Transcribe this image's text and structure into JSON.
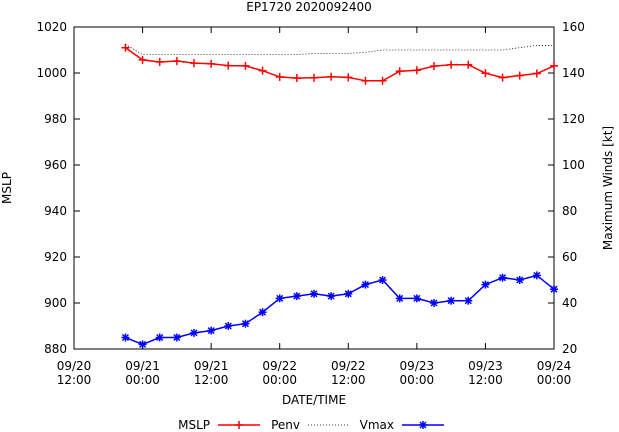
{
  "chart_data": {
    "type": "line",
    "title": "EP1720 2020092400",
    "xlabel": "DATE/TIME",
    "ylabel_left": "MSLP",
    "ylabel_right": "Maximum Winds [kt]",
    "x_ticks": [
      {
        "hour": 0,
        "line1": "09/20",
        "line2": "12:00"
      },
      {
        "hour": 12,
        "line1": "09/21",
        "line2": "00:00"
      },
      {
        "hour": 24,
        "line1": "09/21",
        "line2": "12:00"
      },
      {
        "hour": 36,
        "line1": "09/22",
        "line2": "00:00"
      },
      {
        "hour": 48,
        "line1": "09/22",
        "line2": "12:00"
      },
      {
        "hour": 60,
        "line1": "09/23",
        "line2": "00:00"
      },
      {
        "hour": 72,
        "line1": "09/23",
        "line2": "12:00"
      },
      {
        "hour": 84,
        "line1": "09/24",
        "line2": "00:00"
      }
    ],
    "x_range": [
      0,
      84
    ],
    "y_left_range": [
      880,
      1020
    ],
    "y_left_ticks": [
      "880",
      "900",
      "920",
      "940",
      "960",
      "980",
      "1000",
      "1020"
    ],
    "y_right_range": [
      20,
      160
    ],
    "y_right_ticks": [
      "20",
      "40",
      "60",
      "80",
      "100",
      "120",
      "140",
      "160"
    ],
    "grid": false,
    "legend_position": "bottom",
    "legend": [
      {
        "label": "MSLP",
        "style": "none"
      },
      {
        "label": "Penv",
        "style": "red-plus"
      },
      {
        "label": "Vmax",
        "style": "blue-star"
      }
    ],
    "x_hours": [
      9,
      12,
      15,
      18,
      21,
      24,
      27,
      30,
      33,
      36,
      39,
      42,
      45,
      48,
      51,
      54,
      57,
      60,
      63,
      66,
      69,
      72,
      75,
      78,
      81,
      84
    ],
    "series": [
      {
        "name": "Penv",
        "axis": "left",
        "color": "#ff0000",
        "marker": "plus",
        "values": [
          1011,
          1005.7,
          1004.8,
          1005.2,
          1004.3,
          1004,
          1003.2,
          1003.1,
          1001,
          998.3,
          997.8,
          997.9,
          998.4,
          998.1,
          996.6,
          996.6,
          1000.8,
          1001.2,
          1003,
          1003.6,
          1003.6,
          999.9,
          998,
          998.9,
          999.8,
          1003.1
        ]
      },
      {
        "name": "MSLP dotted",
        "axis": "left",
        "color": "#000000",
        "marker": "none",
        "dotted": true,
        "x_hours": [
          9,
          12,
          15,
          18,
          21,
          24,
          27,
          30,
          33,
          36,
          39,
          42,
          45,
          48,
          51,
          54,
          57,
          60,
          63,
          66,
          69,
          72,
          75,
          78,
          81,
          84
        ],
        "values": [
          1012.5,
          1008,
          1008,
          1008,
          1008,
          1008,
          1008,
          1008,
          1008,
          1008,
          1008,
          1008.5,
          1008.5,
          1008.5,
          1009,
          1010,
          1010,
          1010,
          1010,
          1010,
          1010,
          1010,
          1010,
          1011,
          1012,
          1012
        ]
      },
      {
        "name": "Vmax",
        "axis": "right",
        "color": "#0000ff",
        "marker": "star",
        "values": [
          25,
          22,
          25,
          25,
          27,
          28,
          30,
          31,
          36,
          42,
          43,
          44,
          43,
          44,
          48,
          50,
          42,
          42,
          40,
          41,
          41,
          48,
          51,
          50,
          52,
          46
        ]
      }
    ]
  }
}
